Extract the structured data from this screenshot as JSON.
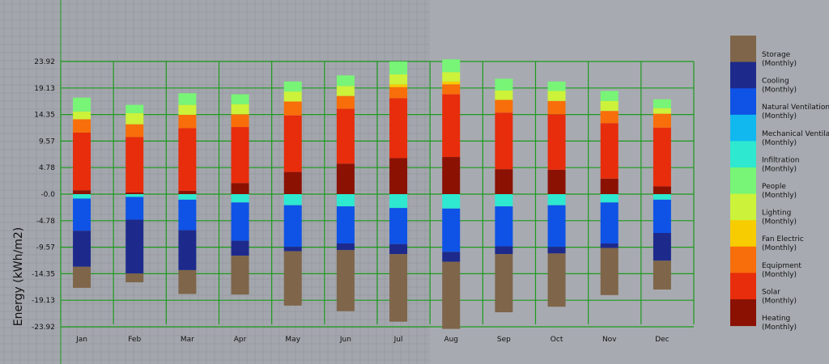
{
  "chart_data": {
    "type": "bar",
    "stacked": true,
    "ylabel": "Energy (kWh/m2)",
    "yticks": [
      "23.92",
      "19.13",
      "14.35",
      "9.57",
      "4.78",
      "-0.0",
      "-4.78",
      "-9.57",
      "-14.35",
      "-19.13",
      "-23.92"
    ],
    "ylim": [
      -23.92,
      23.92
    ],
    "grid": true,
    "legend_position": "right",
    "categories": [
      "Jan",
      "Feb",
      "Mar",
      "Apr",
      "May",
      "Jun",
      "Jul",
      "Aug",
      "Sep",
      "Oct",
      "Nov",
      "Dec"
    ],
    "series": [
      {
        "name": "Storage",
        "unit": "(Monthly)",
        "color": "#7f6549",
        "values": [
          -3.8,
          -1.6,
          -4.3,
          -7.0,
          -9.8,
          -11.0,
          -12.2,
          -12.1,
          -10.5,
          -9.6,
          -8.5,
          -5.2
        ]
      },
      {
        "name": "Cooling",
        "unit": "(Monthly)",
        "color": "#1d2a8c",
        "values": [
          -6.5,
          -9.7,
          -7.2,
          -2.7,
          -0.8,
          -1.2,
          -1.8,
          -1.8,
          -1.4,
          -1.2,
          -0.8,
          -5.0
        ]
      },
      {
        "name": "Natural Ventilation",
        "unit": "(Monthly)",
        "color": "#0f52e6",
        "values": [
          -5.8,
          -4.1,
          -5.5,
          -6.9,
          -7.5,
          -6.7,
          -6.5,
          -7.8,
          -7.2,
          -7.5,
          -7.4,
          -6.0
        ]
      },
      {
        "name": "Mechanical Ventilation",
        "unit": "(Monthly)",
        "color": "#11b8f0",
        "values": [
          0,
          0,
          0,
          0,
          0,
          0,
          0,
          0,
          0,
          0,
          0,
          0
        ]
      },
      {
        "name": "Infiltration",
        "unit": "(Monthly)",
        "color": "#2ee8cf",
        "values": [
          -0.8,
          -0.5,
          -1.0,
          -1.5,
          -2.0,
          -2.2,
          -2.5,
          -2.6,
          -2.2,
          -2.0,
          -1.5,
          -1.0
        ]
      },
      {
        "name": "People",
        "unit": "(Monthly)",
        "color": "#78f576",
        "values": [
          2.5,
          1.5,
          2.1,
          1.8,
          1.8,
          1.9,
          2.3,
          2.3,
          2.1,
          1.7,
          1.8,
          1.6
        ]
      },
      {
        "name": "Lighting",
        "unit": "(Monthly)",
        "color": "#ccf23a",
        "values": [
          1.4,
          2.0,
          1.8,
          1.8,
          1.8,
          1.8,
          1.8,
          1.7,
          1.7,
          1.8,
          1.8,
          1.0
        ]
      },
      {
        "name": "Fan Electric",
        "unit": "(Monthly)",
        "color": "#f7cc00",
        "values": [
          0,
          0,
          0,
          0,
          0,
          0,
          0.5,
          0.5,
          0,
          0,
          0,
          0
        ]
      },
      {
        "name": "Equipment",
        "unit": "(Monthly)",
        "color": "#f86e0a",
        "values": [
          2.4,
          2.3,
          2.4,
          2.3,
          2.5,
          2.3,
          2.0,
          1.8,
          2.3,
          2.4,
          2.2,
          2.5
        ]
      },
      {
        "name": "Solar",
        "unit": "(Monthly)",
        "color": "#e72d0c",
        "values": [
          10.4,
          10.0,
          11.3,
          10.1,
          10.2,
          9.9,
          10.8,
          11.3,
          10.2,
          10.0,
          10.0,
          10.6
        ]
      },
      {
        "name": "Heating",
        "unit": "(Monthly)",
        "color": "#8b1103",
        "values": [
          0.7,
          0.3,
          0.6,
          2.0,
          4.0,
          5.5,
          6.5,
          6.7,
          4.5,
          4.4,
          2.8,
          1.4
        ]
      }
    ]
  }
}
